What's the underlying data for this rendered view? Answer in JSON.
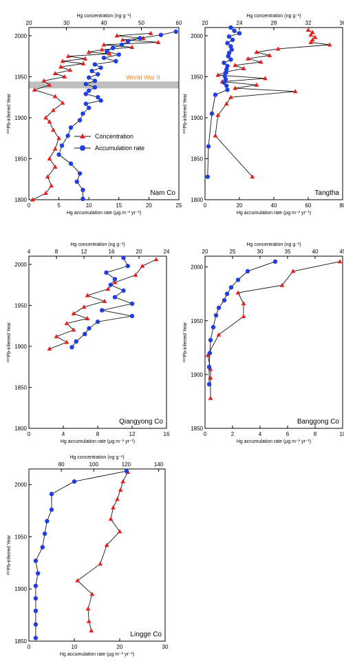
{
  "colors": {
    "concentration": "#e8201c",
    "accumulation": "#1f3fe0",
    "line": "#111111",
    "band": "#bfbfbf",
    "annotation": "#f28a2e"
  },
  "legend": {
    "concentration": "Concentration",
    "accumulation": "Accumulation rate"
  },
  "chart_data": [
    {
      "type": "line",
      "name": "Nam Co",
      "bottom_label": "Hg accumulation rate (μg m⁻² yr⁻¹)",
      "top_label": "Hg concentration (ng g⁻¹)",
      "ylabel": "²¹⁰Pb-inferred Year",
      "bottom_ticks": [
        0,
        5,
        10,
        15,
        20,
        25
      ],
      "top_ticks": [
        20,
        30,
        40,
        50,
        60
      ],
      "y_ticks": [
        1800,
        1850,
        1900,
        1950,
        2000
      ],
      "bottom_range": [
        0,
        25
      ],
      "top_range": [
        20,
        60
      ],
      "y_range": [
        1800,
        2010
      ],
      "annotation": {
        "text": "World War II",
        "year": 1940
      },
      "concentration": [
        {
          "year": 2003,
          "value": 52.5
        },
        {
          "year": 2000,
          "value": 43.5
        },
        {
          "year": 1997,
          "value": 50.5
        },
        {
          "year": 1995,
          "value": 45.0
        },
        {
          "year": 1992,
          "value": 54.5
        },
        {
          "year": 1989,
          "value": 40.0
        },
        {
          "year": 1986,
          "value": 47.5
        },
        {
          "year": 1983,
          "value": 39.5
        },
        {
          "year": 1980,
          "value": 36.0
        },
        {
          "year": 1978,
          "value": 41.5
        },
        {
          "year": 1975,
          "value": 30.5
        },
        {
          "year": 1972,
          "value": 35.0
        },
        {
          "year": 1969,
          "value": 29.0
        },
        {
          "year": 1966,
          "value": 34.5
        },
        {
          "year": 1962,
          "value": 28.5
        },
        {
          "year": 1958,
          "value": 31.0
        },
        {
          "year": 1954,
          "value": 27.0
        },
        {
          "year": 1950,
          "value": 29.5
        },
        {
          "year": 1945,
          "value": 24.0
        },
        {
          "year": 1940,
          "value": 25.5
        },
        {
          "year": 1934,
          "value": 21.5
        },
        {
          "year": 1926,
          "value": 27.0
        },
        {
          "year": 1918,
          "value": 29.0
        },
        {
          "year": 1909,
          "value": 26.5
        },
        {
          "year": 1900,
          "value": 24.5
        },
        {
          "year": 1895,
          "value": 25.5
        },
        {
          "year": 1885,
          "value": 26.5
        },
        {
          "year": 1875,
          "value": 28.0
        },
        {
          "year": 1862,
          "value": 27.0
        },
        {
          "year": 1850,
          "value": 25.5
        },
        {
          "year": 1840,
          "value": 27.0
        },
        {
          "year": 1828,
          "value": 25.0
        },
        {
          "year": 1817,
          "value": 26.0
        },
        {
          "year": 1808,
          "value": 24.5
        },
        {
          "year": 1800,
          "value": 21.0
        }
      ],
      "accumulation": [
        {
          "year": 2005,
          "value": 24.5
        },
        {
          "year": 2001,
          "value": 22.0
        },
        {
          "year": 1997,
          "value": 18.5
        },
        {
          "year": 1993,
          "value": 16.5
        },
        {
          "year": 1989,
          "value": 15.5
        },
        {
          "year": 1985,
          "value": 14.0
        },
        {
          "year": 1981,
          "value": 13.0
        },
        {
          "year": 1977,
          "value": 15.0
        },
        {
          "year": 1973,
          "value": 12.5
        },
        {
          "year": 1969,
          "value": 14.5
        },
        {
          "year": 1965,
          "value": 11.0
        },
        {
          "year": 1961,
          "value": 12.0
        },
        {
          "year": 1957,
          "value": 10.5
        },
        {
          "year": 1953,
          "value": 11.5
        },
        {
          "year": 1949,
          "value": 10.0
        },
        {
          "year": 1945,
          "value": 11.0
        },
        {
          "year": 1941,
          "value": 9.5
        },
        {
          "year": 1937,
          "value": 11.0
        },
        {
          "year": 1933,
          "value": 10.0
        },
        {
          "year": 1929,
          "value": 9.5
        },
        {
          "year": 1925,
          "value": 11.5
        },
        {
          "year": 1921,
          "value": 12.0
        },
        {
          "year": 1917,
          "value": 9.5
        },
        {
          "year": 1912,
          "value": 10.0
        },
        {
          "year": 1905,
          "value": 9.0
        },
        {
          "year": 1897,
          "value": 8.5
        },
        {
          "year": 1888,
          "value": 7.0
        },
        {
          "year": 1878,
          "value": 6.5
        },
        {
          "year": 1866,
          "value": 5.5
        },
        {
          "year": 1855,
          "value": 5.0
        },
        {
          "year": 1844,
          "value": 7.0
        },
        {
          "year": 1832,
          "value": 8.5
        },
        {
          "year": 1822,
          "value": 8.0
        },
        {
          "year": 1812,
          "value": 9.0
        },
        {
          "year": 1801,
          "value": 9.0
        }
      ]
    },
    {
      "type": "line",
      "name": "Tangtha",
      "bottom_label": "Hg accumulation rate (μg m⁻² yr⁻¹)",
      "top_label": "Hg concentration (ng g⁻¹)",
      "ylabel": "²¹⁰Pb-inferred Year",
      "bottom_ticks": [
        0,
        20,
        40,
        60,
        80
      ],
      "top_ticks": [
        20,
        24,
        28,
        32,
        36
      ],
      "y_ticks": [
        1800,
        1850,
        1900,
        1950,
        2000
      ],
      "bottom_range": [
        0,
        80
      ],
      "top_range": [
        20,
        36
      ],
      "y_range": [
        1800,
        2010
      ],
      "concentration": [
        {
          "year": 2007,
          "value": 32.0
        },
        {
          "year": 2004,
          "value": 32.5
        },
        {
          "year": 2001,
          "value": 32.3
        },
        {
          "year": 1998,
          "value": 32.8
        },
        {
          "year": 1995,
          "value": 32.5
        },
        {
          "year": 1992,
          "value": 32.3
        },
        {
          "year": 1989,
          "value": 34.5
        },
        {
          "year": 1984,
          "value": 28.5
        },
        {
          "year": 1980,
          "value": 26.0
        },
        {
          "year": 1976,
          "value": 27.5
        },
        {
          "year": 1972,
          "value": 25.0
        },
        {
          "year": 1968,
          "value": 26.5
        },
        {
          "year": 1964,
          "value": 23.5
        },
        {
          "year": 1960,
          "value": 24.5
        },
        {
          "year": 1956,
          "value": 22.5
        },
        {
          "year": 1952,
          "value": 21.5
        },
        {
          "year": 1948,
          "value": 27.0
        },
        {
          "year": 1944,
          "value": 22.0
        },
        {
          "year": 1940,
          "value": 26.0
        },
        {
          "year": 1936,
          "value": 23.5
        },
        {
          "year": 1932,
          "value": 30.5
        },
        {
          "year": 1925,
          "value": 23.0
        },
        {
          "year": 1917,
          "value": 22.5
        },
        {
          "year": 1903,
          "value": 21.5
        },
        {
          "year": 1878,
          "value": 21.2
        },
        {
          "year": 1828,
          "value": 25.5
        }
      ],
      "accumulation": [
        {
          "year": 2010,
          "value": 15.0
        },
        {
          "year": 2006,
          "value": 17.0
        },
        {
          "year": 2003,
          "value": 20.0
        },
        {
          "year": 1999,
          "value": 14.0
        },
        {
          "year": 1995,
          "value": 16.0
        },
        {
          "year": 1991,
          "value": 13.0
        },
        {
          "year": 1987,
          "value": 15.0
        },
        {
          "year": 1983,
          "value": 15.5
        },
        {
          "year": 1979,
          "value": 14.0
        },
        {
          "year": 1975,
          "value": 13.5
        },
        {
          "year": 1971,
          "value": 15.0
        },
        {
          "year": 1967,
          "value": 11.0
        },
        {
          "year": 1963,
          "value": 13.0
        },
        {
          "year": 1959,
          "value": 12.5
        },
        {
          "year": 1955,
          "value": 12.0
        },
        {
          "year": 1951,
          "value": 11.5
        },
        {
          "year": 1947,
          "value": 12.0
        },
        {
          "year": 1943,
          "value": 11.0
        },
        {
          "year": 1939,
          "value": 12.5
        },
        {
          "year": 1934,
          "value": 13.0
        },
        {
          "year": 1928,
          "value": 6.0
        },
        {
          "year": 1905,
          "value": 4.0
        },
        {
          "year": 1865,
          "value": 2.0
        },
        {
          "year": 1828,
          "value": 1.5
        }
      ]
    },
    {
      "type": "line",
      "name": "Qiangyong Co",
      "bottom_label": "Hg accumulation rate (μg m⁻² yr⁻¹)",
      "top_label": "Hg concentration (ng g⁻¹)",
      "ylabel": "²¹⁰Pb-inferred Year",
      "bottom_ticks": [
        0,
        4,
        8,
        12,
        16
      ],
      "top_ticks": [
        4,
        8,
        12,
        16,
        20,
        24
      ],
      "y_ticks": [
        1800,
        1850,
        1900,
        1950,
        2000
      ],
      "bottom_range": [
        0,
        16
      ],
      "top_range": [
        4,
        24
      ],
      "y_range": [
        1800,
        2010
      ],
      "concentration": [
        {
          "year": 2006,
          "value": 22.5
        },
        {
          "year": 1998,
          "value": 20.5
        },
        {
          "year": 1987,
          "value": 19.5
        },
        {
          "year": 1978,
          "value": 16.5
        },
        {
          "year": 1970,
          "value": 15.5
        },
        {
          "year": 1962,
          "value": 12.5
        },
        {
          "year": 1955,
          "value": 15.0
        },
        {
          "year": 1948,
          "value": 12.0
        },
        {
          "year": 1940,
          "value": 10.5
        },
        {
          "year": 1934,
          "value": 12.5
        },
        {
          "year": 1928,
          "value": 9.5
        },
        {
          "year": 1920,
          "value": 10.5
        },
        {
          "year": 1912,
          "value": 8.0
        },
        {
          "year": 1905,
          "value": 9.5
        },
        {
          "year": 1897,
          "value": 7.0
        }
      ],
      "accumulation": [
        {
          "year": 2008,
          "value": 11.0
        },
        {
          "year": 1998,
          "value": 11.5
        },
        {
          "year": 1990,
          "value": 9.0
        },
        {
          "year": 1982,
          "value": 10.0
        },
        {
          "year": 1975,
          "value": 9.5
        },
        {
          "year": 1968,
          "value": 11.0
        },
        {
          "year": 1960,
          "value": 10.0
        },
        {
          "year": 1952,
          "value": 12.0
        },
        {
          "year": 1944,
          "value": 8.5
        },
        {
          "year": 1937,
          "value": 12.0
        },
        {
          "year": 1930,
          "value": 8.0
        },
        {
          "year": 1922,
          "value": 7.0
        },
        {
          "year": 1915,
          "value": 6.5
        },
        {
          "year": 1906,
          "value": 5.5
        },
        {
          "year": 1899,
          "value": 5.0
        }
      ]
    },
    {
      "type": "line",
      "name": "Banggong Co",
      "bottom_label": "Hg accumulation rate (μg m⁻² yr⁻¹)",
      "top_label": "Hg concentration (ng g⁻¹)",
      "ylabel": "²¹⁰Pb-inferred Year",
      "bottom_ticks": [
        0,
        2,
        4,
        6,
        8,
        10
      ],
      "top_ticks": [
        20,
        25,
        30,
        35,
        40,
        45
      ],
      "y_ticks": [
        1850,
        1900,
        1950,
        2000
      ],
      "bottom_range": [
        0,
        10
      ],
      "top_range": [
        20,
        45
      ],
      "y_range": [
        1850,
        2010
      ],
      "concentration": [
        {
          "year": 2005,
          "value": 44.5
        },
        {
          "year": 1996,
          "value": 36.0
        },
        {
          "year": 1983,
          "value": 34.0
        },
        {
          "year": 1976,
          "value": 26.0
        },
        {
          "year": 1966,
          "value": 27.0
        },
        {
          "year": 1954,
          "value": 27.0
        },
        {
          "year": 1937,
          "value": 22.5
        },
        {
          "year": 1918,
          "value": 20.5
        },
        {
          "year": 1905,
          "value": 21.0
        },
        {
          "year": 1897,
          "value": 21.0
        },
        {
          "year": 1878,
          "value": 21.0
        }
      ],
      "accumulation": [
        {
          "year": 2005,
          "value": 5.1
        },
        {
          "year": 1996,
          "value": 3.1
        },
        {
          "year": 1988,
          "value": 2.4
        },
        {
          "year": 1981,
          "value": 1.9
        },
        {
          "year": 1975,
          "value": 1.6
        },
        {
          "year": 1969,
          "value": 1.4
        },
        {
          "year": 1962,
          "value": 1.0
        },
        {
          "year": 1955,
          "value": 0.8
        },
        {
          "year": 1944,
          "value": 0.6
        },
        {
          "year": 1932,
          "value": 0.4
        },
        {
          "year": 1920,
          "value": 0.35
        },
        {
          "year": 1907,
          "value": 0.3
        },
        {
          "year": 1891,
          "value": 0.3
        }
      ]
    },
    {
      "type": "line",
      "name": "Lingge Co",
      "bottom_label": "Hg accumulation rate (μg m⁻² yr⁻¹)",
      "top_label": "Hg concentration (ng g⁻¹)",
      "ylabel": "²¹⁰Pb-inferred Year",
      "bottom_ticks": [
        0,
        10,
        20,
        30
      ],
      "top_ticks": [
        80,
        100,
        120,
        140
      ],
      "y_ticks": [
        1850,
        1900,
        1950,
        2000
      ],
      "bottom_range": [
        0,
        30
      ],
      "top_range": [
        60,
        144
      ],
      "y_range": [
        1850,
        2015
      ],
      "concentration": [
        {
          "year": 2012,
          "value": 121.0
        },
        {
          "year": 2003,
          "value": 118.0
        },
        {
          "year": 1995,
          "value": 116.5
        },
        {
          "year": 1986,
          "value": 114.5
        },
        {
          "year": 1978,
          "value": 112.0
        },
        {
          "year": 1967,
          "value": 110.5
        },
        {
          "year": 1955,
          "value": 116.0
        },
        {
          "year": 1942,
          "value": 108.0
        },
        {
          "year": 1924,
          "value": 104.0
        },
        {
          "year": 1908,
          "value": 90.0
        },
        {
          "year": 1895,
          "value": 99.0
        },
        {
          "year": 1881,
          "value": 96.5
        },
        {
          "year": 1869,
          "value": 97.0
        },
        {
          "year": 1860,
          "value": 98.5
        }
      ],
      "accumulation": [
        {
          "year": 2013,
          "value": 21.5
        },
        {
          "year": 2003,
          "value": 10.0
        },
        {
          "year": 1991,
          "value": 5.0
        },
        {
          "year": 1976,
          "value": 5.0
        },
        {
          "year": 1965,
          "value": 4.0
        },
        {
          "year": 1953,
          "value": 3.5
        },
        {
          "year": 1940,
          "value": 3.0
        },
        {
          "year": 1927,
          "value": 1.5
        },
        {
          "year": 1915,
          "value": 2.0
        },
        {
          "year": 1903,
          "value": 1.5
        },
        {
          "year": 1891,
          "value": 1.5
        },
        {
          "year": 1879,
          "value": 1.5
        },
        {
          "year": 1866,
          "value": 1.5
        },
        {
          "year": 1853,
          "value": 1.5
        }
      ]
    }
  ]
}
